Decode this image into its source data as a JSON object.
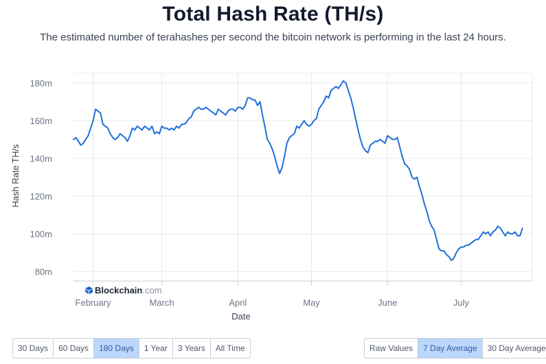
{
  "header": {
    "title": "Total Hash Rate (TH/s)",
    "subtitle": "The estimated number of terahashes per second the bitcoin network is performing in the last 24 hours."
  },
  "brand": {
    "name": "Blockchain",
    "suffix": ".com"
  },
  "range_buttons": [
    {
      "label": "30 Days",
      "active": false
    },
    {
      "label": "60 Days",
      "active": false
    },
    {
      "label": "180 Days",
      "active": true
    },
    {
      "label": "1 Year",
      "active": false
    },
    {
      "label": "3 Years",
      "active": false
    },
    {
      "label": "All Time",
      "active": false
    }
  ],
  "avg_buttons": [
    {
      "label": "Raw Values",
      "active": false
    },
    {
      "label": "7 Day Average",
      "active": true
    },
    {
      "label": "30 Day Average",
      "active": false
    }
  ],
  "colors": {
    "line": "#1f6fd8",
    "grid": "#e6e8ee",
    "tick": "#6b7385",
    "active_button": "#bcd7fb"
  },
  "chart_data": {
    "type": "line",
    "xlabel": "Date",
    "ylabel": "Hash Rate TH/s",
    "ylim": [
      75,
      185
    ],
    "yticks": [
      80,
      100,
      120,
      140,
      160,
      180
    ],
    "ytick_labels": [
      "80m",
      "100m",
      "120m",
      "140m",
      "160m",
      "180m"
    ],
    "xlim": [
      "2021-01-24",
      "2021-07-30"
    ],
    "xticks": [
      "2021-02-01",
      "2021-03-01",
      "2021-04-01",
      "2021-05-01",
      "2021-06-01",
      "2021-07-01"
    ],
    "xtick_labels": [
      "February",
      "March",
      "April",
      "May",
      "June",
      "July"
    ],
    "grid": true,
    "series": [
      {
        "name": "",
        "points": [
          [
            "2021-01-24",
            150
          ],
          [
            "2021-01-25",
            151
          ],
          [
            "2021-01-26",
            149
          ],
          [
            "2021-01-27",
            147
          ],
          [
            "2021-01-28",
            148
          ],
          [
            "2021-01-29",
            150
          ],
          [
            "2021-01-30",
            152
          ],
          [
            "2021-01-31",
            156
          ],
          [
            "2021-02-01",
            160
          ],
          [
            "2021-02-02",
            166
          ],
          [
            "2021-02-03",
            165
          ],
          [
            "2021-02-04",
            164
          ],
          [
            "2021-02-05",
            158
          ],
          [
            "2021-02-06",
            157
          ],
          [
            "2021-02-07",
            156
          ],
          [
            "2021-02-08",
            153
          ],
          [
            "2021-02-09",
            151
          ],
          [
            "2021-02-10",
            150
          ],
          [
            "2021-02-11",
            151
          ],
          [
            "2021-02-12",
            153
          ],
          [
            "2021-02-13",
            152
          ],
          [
            "2021-02-14",
            151
          ],
          [
            "2021-02-15",
            149
          ],
          [
            "2021-02-16",
            152
          ],
          [
            "2021-02-17",
            156
          ],
          [
            "2021-02-18",
            155
          ],
          [
            "2021-02-19",
            157
          ],
          [
            "2021-02-20",
            156
          ],
          [
            "2021-02-21",
            155
          ],
          [
            "2021-02-22",
            157
          ],
          [
            "2021-02-23",
            156
          ],
          [
            "2021-02-24",
            155
          ],
          [
            "2021-02-25",
            157
          ],
          [
            "2021-02-26",
            153
          ],
          [
            "2021-02-27",
            154
          ],
          [
            "2021-02-28",
            153
          ],
          [
            "2021-03-01",
            157
          ],
          [
            "2021-03-02",
            156
          ],
          [
            "2021-03-03",
            156
          ],
          [
            "2021-03-04",
            155
          ],
          [
            "2021-03-05",
            156
          ],
          [
            "2021-03-06",
            155
          ],
          [
            "2021-03-07",
            157
          ],
          [
            "2021-03-08",
            156
          ],
          [
            "2021-03-09",
            158
          ],
          [
            "2021-03-10",
            158
          ],
          [
            "2021-03-11",
            159
          ],
          [
            "2021-03-12",
            161
          ],
          [
            "2021-03-13",
            162
          ],
          [
            "2021-03-14",
            165
          ],
          [
            "2021-03-15",
            166
          ],
          [
            "2021-03-16",
            167
          ],
          [
            "2021-03-17",
            166
          ],
          [
            "2021-03-18",
            166
          ],
          [
            "2021-03-19",
            167
          ],
          [
            "2021-03-20",
            166
          ],
          [
            "2021-03-21",
            165
          ],
          [
            "2021-03-22",
            164
          ],
          [
            "2021-03-23",
            163
          ],
          [
            "2021-03-24",
            166
          ],
          [
            "2021-03-25",
            165
          ],
          [
            "2021-03-26",
            164
          ],
          [
            "2021-03-27",
            163
          ],
          [
            "2021-03-28",
            165
          ],
          [
            "2021-03-29",
            166
          ],
          [
            "2021-03-30",
            166
          ],
          [
            "2021-03-31",
            165
          ],
          [
            "2021-04-01",
            167
          ],
          [
            "2021-04-02",
            167
          ],
          [
            "2021-04-03",
            166
          ],
          [
            "2021-04-04",
            168
          ],
          [
            "2021-04-05",
            172
          ],
          [
            "2021-04-06",
            172
          ],
          [
            "2021-04-07",
            171
          ],
          [
            "2021-04-08",
            171
          ],
          [
            "2021-04-09",
            168
          ],
          [
            "2021-04-10",
            170
          ],
          [
            "2021-04-11",
            163
          ],
          [
            "2021-04-12",
            157
          ],
          [
            "2021-04-13",
            150
          ],
          [
            "2021-04-14",
            148
          ],
          [
            "2021-04-15",
            145
          ],
          [
            "2021-04-16",
            141
          ],
          [
            "2021-04-17",
            136
          ],
          [
            "2021-04-18",
            132
          ],
          [
            "2021-04-19",
            135
          ],
          [
            "2021-04-20",
            141
          ],
          [
            "2021-04-21",
            148
          ],
          [
            "2021-04-22",
            151
          ],
          [
            "2021-04-23",
            152
          ],
          [
            "2021-04-24",
            153
          ],
          [
            "2021-04-25",
            157
          ],
          [
            "2021-04-26",
            156
          ],
          [
            "2021-04-27",
            158
          ],
          [
            "2021-04-28",
            160
          ],
          [
            "2021-04-29",
            158
          ],
          [
            "2021-04-30",
            157
          ],
          [
            "2021-05-01",
            158
          ],
          [
            "2021-05-02",
            160
          ],
          [
            "2021-05-03",
            161
          ],
          [
            "2021-05-04",
            166
          ],
          [
            "2021-05-05",
            168
          ],
          [
            "2021-05-06",
            170
          ],
          [
            "2021-05-07",
            173
          ],
          [
            "2021-05-08",
            172
          ],
          [
            "2021-05-09",
            176
          ],
          [
            "2021-05-10",
            177
          ],
          [
            "2021-05-11",
            178
          ],
          [
            "2021-05-12",
            177
          ],
          [
            "2021-05-13",
            179
          ],
          [
            "2021-05-14",
            181
          ],
          [
            "2021-05-15",
            180
          ],
          [
            "2021-05-16",
            176
          ],
          [
            "2021-05-17",
            172
          ],
          [
            "2021-05-18",
            167
          ],
          [
            "2021-05-19",
            161
          ],
          [
            "2021-05-20",
            155
          ],
          [
            "2021-05-21",
            150
          ],
          [
            "2021-05-22",
            146
          ],
          [
            "2021-05-23",
            144
          ],
          [
            "2021-05-24",
            143
          ],
          [
            "2021-05-25",
            147
          ],
          [
            "2021-05-26",
            148
          ],
          [
            "2021-05-27",
            149
          ],
          [
            "2021-05-28",
            149
          ],
          [
            "2021-05-29",
            150
          ],
          [
            "2021-05-30",
            149
          ],
          [
            "2021-05-31",
            148
          ],
          [
            "2021-06-01",
            152
          ],
          [
            "2021-06-02",
            151
          ],
          [
            "2021-06-03",
            150
          ],
          [
            "2021-06-04",
            150
          ],
          [
            "2021-06-05",
            151
          ],
          [
            "2021-06-06",
            146
          ],
          [
            "2021-06-07",
            141
          ],
          [
            "2021-06-08",
            137
          ],
          [
            "2021-06-09",
            136
          ],
          [
            "2021-06-10",
            134
          ],
          [
            "2021-06-11",
            130
          ],
          [
            "2021-06-12",
            129
          ],
          [
            "2021-06-13",
            130
          ],
          [
            "2021-06-14",
            125
          ],
          [
            "2021-06-15",
            121
          ],
          [
            "2021-06-16",
            116
          ],
          [
            "2021-06-17",
            112
          ],
          [
            "2021-06-18",
            107
          ],
          [
            "2021-06-19",
            104
          ],
          [
            "2021-06-20",
            102
          ],
          [
            "2021-06-21",
            97
          ],
          [
            "2021-06-22",
            92
          ],
          [
            "2021-06-23",
            91
          ],
          [
            "2021-06-24",
            91
          ],
          [
            "2021-06-25",
            89
          ],
          [
            "2021-06-26",
            88
          ],
          [
            "2021-06-27",
            86
          ],
          [
            "2021-06-28",
            87
          ],
          [
            "2021-06-29",
            90
          ],
          [
            "2021-06-30",
            92
          ],
          [
            "2021-07-01",
            93
          ],
          [
            "2021-07-02",
            93
          ],
          [
            "2021-07-03",
            94
          ],
          [
            "2021-07-04",
            94
          ],
          [
            "2021-07-05",
            95
          ],
          [
            "2021-07-06",
            96
          ],
          [
            "2021-07-07",
            97
          ],
          [
            "2021-07-08",
            97
          ],
          [
            "2021-07-09",
            99
          ],
          [
            "2021-07-10",
            101
          ],
          [
            "2021-07-11",
            100
          ],
          [
            "2021-07-12",
            101
          ],
          [
            "2021-07-13",
            99
          ],
          [
            "2021-07-14",
            101
          ],
          [
            "2021-07-15",
            102
          ],
          [
            "2021-07-16",
            104
          ],
          [
            "2021-07-17",
            103
          ],
          [
            "2021-07-18",
            101
          ],
          [
            "2021-07-19",
            99
          ],
          [
            "2021-07-20",
            101
          ],
          [
            "2021-07-21",
            100
          ],
          [
            "2021-07-22",
            100
          ],
          [
            "2021-07-23",
            101
          ],
          [
            "2021-07-24",
            99
          ],
          [
            "2021-07-25",
            99
          ],
          [
            "2021-07-26",
            103
          ]
        ]
      }
    ]
  }
}
